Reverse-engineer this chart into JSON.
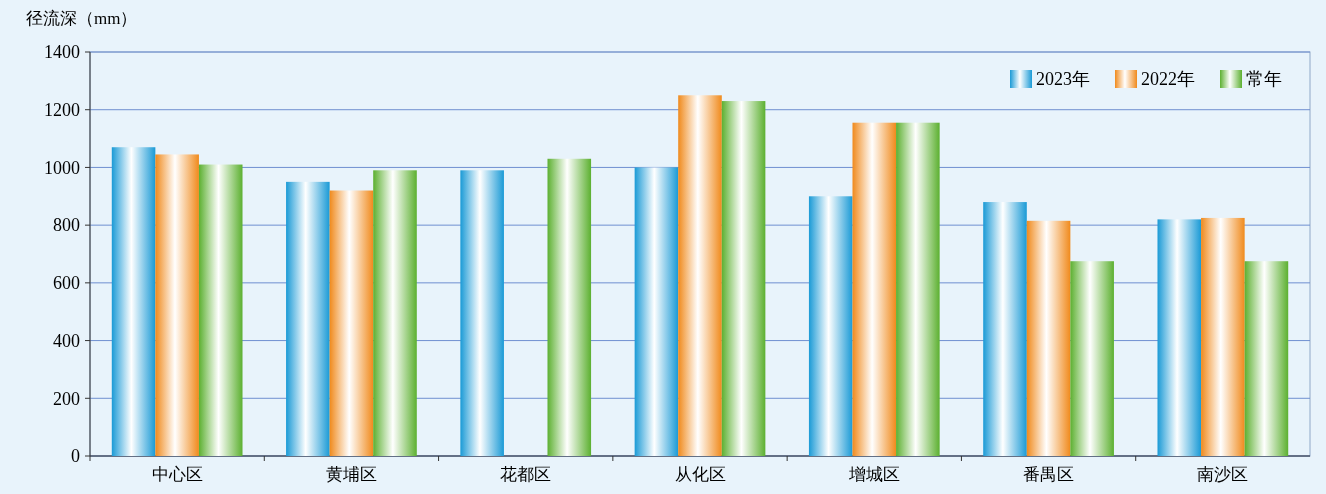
{
  "chart_data": {
    "type": "bar",
    "ylabel": "径流深（mm）",
    "categories": [
      "中心区",
      "黄埔区",
      "花都区",
      "从化区",
      "增城区",
      "番禺区",
      "南沙区"
    ],
    "series": [
      {
        "name": "2023年",
        "color": "#1a9ad6",
        "values": [
          1070,
          950,
          990,
          1000,
          900,
          880,
          820
        ]
      },
      {
        "name": "2022年",
        "color": "#f08a1c",
        "values": [
          1045,
          920,
          null,
          1250,
          1155,
          815,
          825
        ]
      },
      {
        "name": "常年",
        "color": "#5cb030",
        "values": [
          1010,
          990,
          1030,
          1230,
          1155,
          675,
          675
        ]
      }
    ],
    "ylim": [
      0,
      1400
    ],
    "yticks": [
      0,
      200,
      400,
      600,
      800,
      1000,
      1200,
      1400
    ],
    "grid": "y",
    "legend": "top right"
  }
}
